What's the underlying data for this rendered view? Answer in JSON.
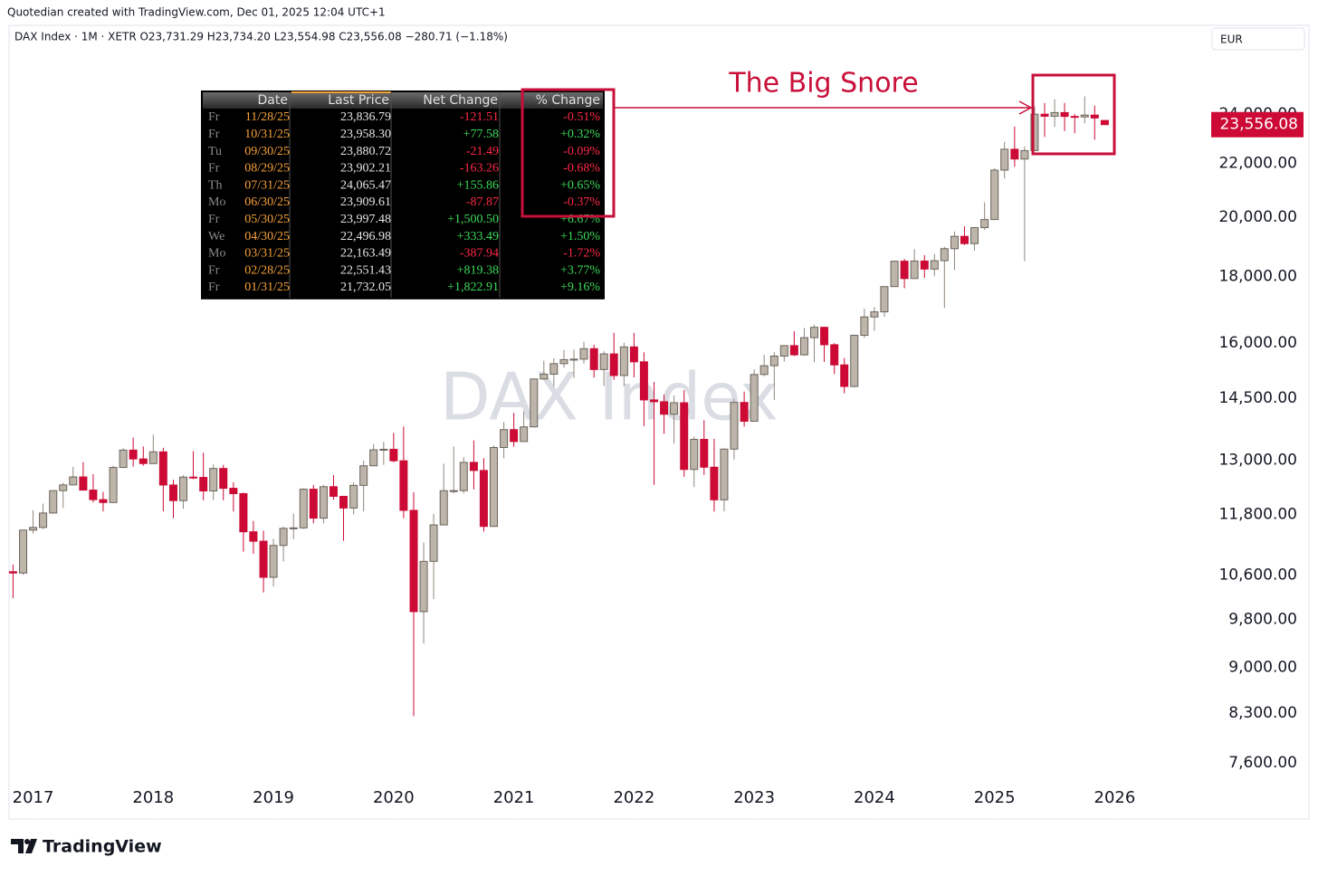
{
  "header": {
    "credit": "Quotedian created with TradingView.com, Dec 01, 2025 12:04 UTC+1",
    "legend": "DAX Index · 1M · XETR  O23,731.29  H23,734.20  L23,554.98  C23,556.08  −280.71 (−1.18%)",
    "currency": "EUR",
    "brand": "TradingView"
  },
  "chart_data": {
    "type": "candlestick",
    "watermark": "DAX Index",
    "log_scale": true,
    "grid": false,
    "up_color": "#bdb5aa",
    "down_color": "#cc0a35",
    "xlim": [
      2016.8,
      2026.78
    ],
    "xticks": [
      2017,
      2018,
      2019,
      2020,
      2021,
      2022,
      2023,
      2024,
      2025,
      2026
    ],
    "ylim": [
      6880,
      28000
    ],
    "yticks": [
      {
        "value": 7600,
        "label": "7,600.00"
      },
      {
        "value": 8300,
        "label": "8,300.00"
      },
      {
        "value": 9000,
        "label": "9,000.00"
      },
      {
        "value": 9800,
        "label": "9,800.00"
      },
      {
        "value": 10600,
        "label": "10,600.00"
      },
      {
        "value": 11800,
        "label": "11,800.00"
      },
      {
        "value": 13000,
        "label": "13,000.00"
      },
      {
        "value": 14500,
        "label": "14,500.00"
      },
      {
        "value": 16000,
        "label": "16,000.00"
      },
      {
        "value": 18000,
        "label": "18,000.00"
      },
      {
        "value": 20000,
        "label": "20,000.00"
      },
      {
        "value": 22000,
        "label": "22,000.00"
      },
      {
        "value": 24000,
        "label": "24,000.00"
      }
    ],
    "price_tag": {
      "value": 23556.08,
      "label": "23,556.08"
    },
    "annotation": "The Big Snore",
    "x": [
      2016.833,
      2016.917,
      2017,
      2017.083,
      2017.167,
      2017.25,
      2017.333,
      2017.417,
      2017.5,
      2017.583,
      2017.667,
      2017.75,
      2017.833,
      2017.917,
      2018,
      2018.083,
      2018.167,
      2018.25,
      2018.333,
      2018.417,
      2018.5,
      2018.583,
      2018.667,
      2018.75,
      2018.833,
      2018.917,
      2019,
      2019.083,
      2019.167,
      2019.25,
      2019.333,
      2019.417,
      2019.5,
      2019.583,
      2019.667,
      2019.75,
      2019.833,
      2019.917,
      2020,
      2020.083,
      2020.167,
      2020.25,
      2020.333,
      2020.417,
      2020.5,
      2020.583,
      2020.667,
      2020.75,
      2020.833,
      2020.917,
      2021,
      2021.083,
      2021.167,
      2021.25,
      2021.333,
      2021.417,
      2021.5,
      2021.583,
      2021.667,
      2021.75,
      2021.833,
      2021.917,
      2022,
      2022.083,
      2022.167,
      2022.25,
      2022.333,
      2022.417,
      2022.5,
      2022.583,
      2022.667,
      2022.75,
      2022.833,
      2022.917,
      2023,
      2023.083,
      2023.167,
      2023.25,
      2023.333,
      2023.417,
      2023.5,
      2023.583,
      2023.667,
      2023.75,
      2023.833,
      2023.917,
      2024,
      2024.083,
      2024.167,
      2024.25,
      2024.333,
      2024.417,
      2024.5,
      2024.583,
      2024.667,
      2024.75,
      2024.833,
      2024.917,
      2025,
      2025.083,
      2025.167,
      2025.25,
      2025.333,
      2025.417,
      2025.5,
      2025.583,
      2025.667,
      2025.75,
      2025.833,
      2025.917
    ],
    "open": [
      10665,
      10640,
      11481,
      11535,
      11834,
      12313,
      12438,
      12615,
      12325,
      12118,
      12056,
      12829,
      13230,
      13024,
      12918,
      13189,
      12436,
      12097,
      12612,
      12605,
      12306,
      12806,
      12364,
      12247,
      11447,
      11257,
      10559,
      11173,
      11516,
      11526,
      12344,
      11727,
      12399,
      12189,
      11939,
      12428,
      12867,
      13236,
      13249,
      12982,
      11890,
      9936,
      10862,
      11587,
      12311,
      12313,
      12945,
      12761,
      11556,
      13291,
      13719,
      13433,
      13786,
      15008,
      15136,
      15421,
      15531,
      15544,
      15835,
      15261,
      15689,
      15100,
      15885,
      15471,
      14461,
      14415,
      14098,
      14388,
      12784,
      13484,
      12835,
      12114,
      13253,
      14397,
      13924,
      15128,
      15365,
      15629,
      15922,
      15664,
      16148,
      16447,
      15947,
      15387,
      14810,
      16215,
      16752,
      16904,
      17678,
      18492,
      17932,
      18498,
      18235,
      18509,
      18907,
      19325,
      19078,
      19626,
      19909,
      21732,
      22551,
      22163,
      22497,
      23997,
      23910,
      24065,
      23902,
      23881,
      23958,
      23731.29
    ],
    "high": [
      10800,
      11482,
      11893,
      12032,
      12313,
      12486,
      12842,
      12951,
      12676,
      12285,
      12870,
      13275,
      13526,
      13315,
      13597,
      13285,
      12551,
      12652,
      13205,
      13170,
      12896,
      12887,
      12497,
      12271,
      11670,
      11471,
      11303,
      11556,
      11823,
      12367,
      12437,
      12438,
      12656,
      12194,
      12494,
      12986,
      13374,
      13425,
      13640,
      13795,
      12278,
      11232,
      11816,
      12913,
      13314,
      13068,
      13460,
      13043,
      13340,
      13904,
      14132,
      14169,
      15008,
      15502,
      15568,
      15803,
      15810,
      16030,
      15950,
      15764,
      16290,
      16000,
      16285,
      15736,
      14925,
      14596,
      14575,
      14713,
      13551,
      13948,
      13497,
      13274,
      14489,
      14675,
      15270,
      15659,
      15736,
      15925,
      16332,
      16427,
      16528,
      16467,
      15990,
      15575,
      16239,
      17003,
      17049,
      17678,
      18492,
      18567,
      18893,
      18692,
      18731,
      18971,
      19492,
      19675,
      19647,
      20523,
      21800,
      22844,
      23476,
      22663,
      24326,
      24479,
      24639,
      24479,
      24000,
      24771,
      24367,
      23734.2
    ],
    "low": [
      10175,
      10606,
      11410,
      11500,
      11820,
      11935,
      12438,
      12318,
      12058,
      11868,
      12049,
      12829,
      12844,
      12868,
      12918,
      11868,
      11727,
      11926,
      12564,
      12104,
      12106,
      12104,
      11865,
      11051,
      11009,
      10279,
      10387,
      10864,
      11299,
      11505,
      11620,
      11620,
      12115,
      11266,
      11803,
      11869,
      12867,
      12888,
      12948,
      11724,
      8256,
      9390,
      10160,
      11587,
      12254,
      12253,
      12340,
      11450,
      11556,
      13040,
      13310,
      13433,
      13786,
      14988,
      14816,
      15311,
      15034,
      15420,
      15044,
      14819,
      14986,
      14821,
      15049,
      13806,
      12439,
      13618,
      13381,
      12618,
      12391,
      12660,
      11863,
      11869,
      13008,
      13791,
      13924,
      15080,
      14458,
      15482,
      15629,
      15639,
      15456,
      15469,
      15138,
      14630,
      14787,
      16144,
      16345,
      16759,
      17678,
      17626,
      17932,
      17951,
      18006,
      17025,
      18208,
      19029,
      18843,
      19550,
      19900,
      21416,
      21859,
      18490,
      22490,
      23052,
      23457,
      23291,
      23200,
      23612,
      22937,
      23554.98
    ],
    "close": [
      10640,
      11481,
      11535,
      11834,
      12313,
      12438,
      12615,
      12325,
      12118,
      12056,
      12829,
      13230,
      13024,
      12918,
      13189,
      12436,
      12097,
      12612,
      12605,
      12306,
      12806,
      12364,
      12247,
      11447,
      11257,
      10559,
      11173,
      11516,
      11526,
      12344,
      11727,
      12399,
      12189,
      11939,
      12428,
      12867,
      13236,
      13249,
      12982,
      11890,
      9936,
      10862,
      11587,
      12311,
      12313,
      12945,
      12761,
      11556,
      13291,
      13719,
      13433,
      13786,
      15008,
      15136,
      15421,
      15531,
      15544,
      15835,
      15261,
      15689,
      15100,
      15885,
      15471,
      14461,
      14415,
      14098,
      14388,
      12784,
      13484,
      12835,
      12114,
      13253,
      14397,
      13924,
      15128,
      15365,
      15629,
      15922,
      15664,
      16148,
      16447,
      15947,
      15387,
      14810,
      16215,
      16752,
      16904,
      17678,
      18492,
      17932,
      18498,
      18235,
      18509,
      18907,
      19325,
      19078,
      19626,
      19909,
      21732.05,
      22551.43,
      22163.49,
      22496.98,
      23997.48,
      23909.61,
      24065.47,
      23902.21,
      23880.72,
      23958.3,
      23836.79,
      23556.08
    ]
  },
  "table": {
    "columns": [
      "Date",
      "Last Price",
      "Net Change",
      "% Change"
    ],
    "rows": [
      [
        "Fr",
        "11/28/25",
        "23,836.79",
        "-121.51",
        "-0.51%"
      ],
      [
        "Fr",
        "10/31/25",
        "23,958.30",
        "+77.58",
        "+0.32%"
      ],
      [
        "Tu",
        "09/30/25",
        "23,880.72",
        "-21.49",
        "-0.09%"
      ],
      [
        "Fr",
        "08/29/25",
        "23,902.21",
        "-163.26",
        "-0.68%"
      ],
      [
        "Th",
        "07/31/25",
        "24,065.47",
        "+155.86",
        "+0.65%"
      ],
      [
        "Mo",
        "06/30/25",
        "23,909.61",
        "-87.87",
        "-0.37%"
      ],
      [
        "Fr",
        "05/30/25",
        "23,997.48",
        "+1,500.50",
        "+6.67%"
      ],
      [
        "We",
        "04/30/25",
        "22,496.98",
        "+333.49",
        "+1.50%"
      ],
      [
        "Mo",
        "03/31/25",
        "22,163.49",
        "-387.94",
        "-1.72%"
      ],
      [
        "Fr",
        "02/28/25",
        "22,551.43",
        "+819.38",
        "+3.77%"
      ],
      [
        "Fr",
        "01/31/25",
        "21,732.05",
        "+1,822.91",
        "+9.16%"
      ]
    ]
  }
}
